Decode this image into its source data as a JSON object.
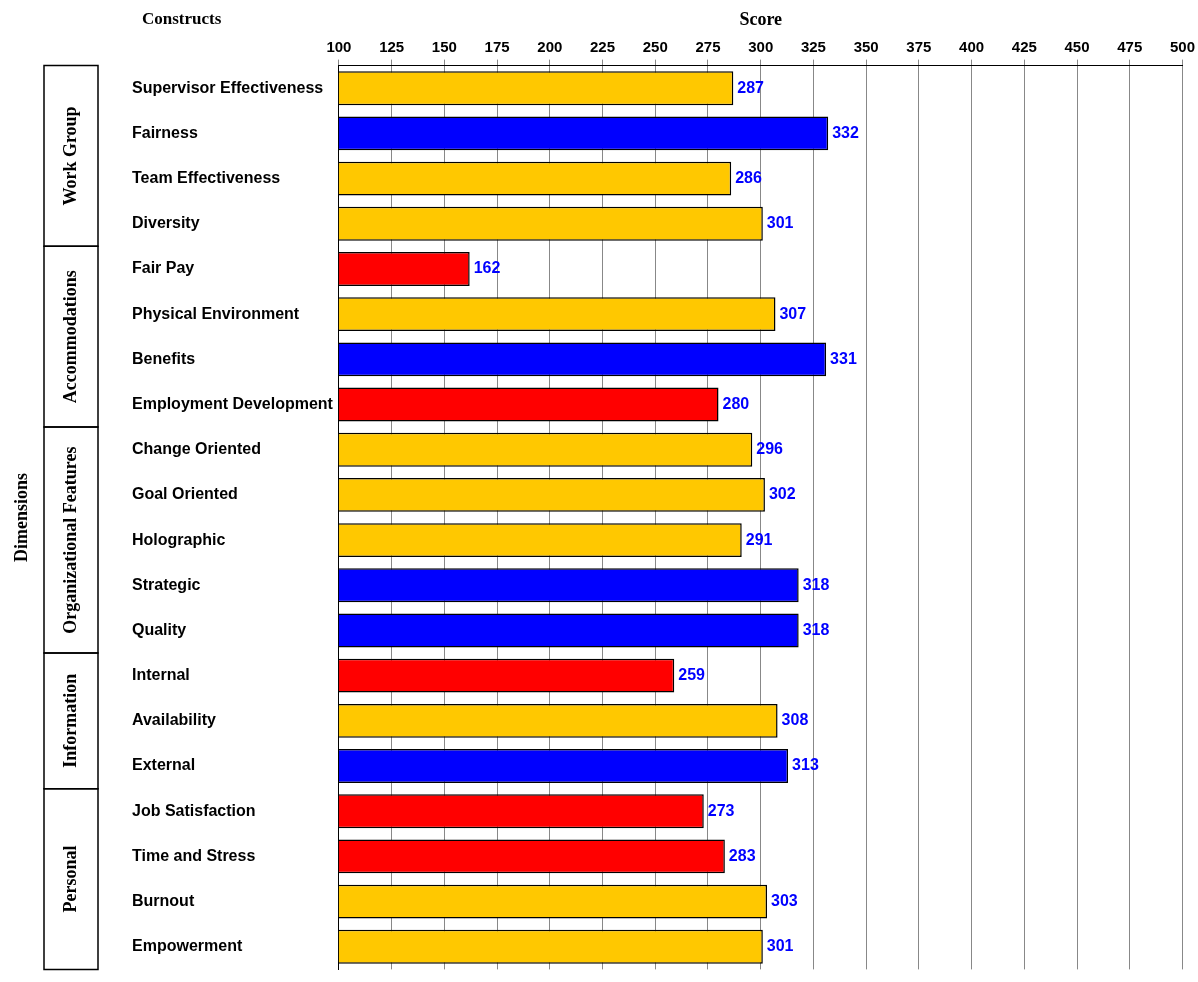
{
  "chart_data": {
    "type": "bar",
    "orientation": "horizontal",
    "xlabel": "Score",
    "ylabel": "Constructs",
    "categories": [
      "Supervisor Effectiveness",
      "Fairness",
      "Team Effectiveness",
      "Diversity",
      "Fair Pay",
      "Physical Environment",
      "Benefits",
      "Employment Development",
      "Change Oriented",
      "Goal Oriented",
      "Holographic",
      "Strategic",
      "Quality",
      "Internal",
      "Availability",
      "External",
      "Job Satisfaction",
      "Time and Stress",
      "Burnout",
      "Empowerment"
    ],
    "values": [
      287,
      332,
      286,
      301,
      162,
      307,
      331,
      280,
      296,
      302,
      291,
      318,
      318,
      259,
      308,
      313,
      273,
      283,
      303,
      301
    ],
    "colors": [
      "#ffc800",
      "#0000ff",
      "#ffc800",
      "#ffc800",
      "#ff0000",
      "#ffc800",
      "#0000ff",
      "#ff0000",
      "#ffc800",
      "#ffc800",
      "#ffc800",
      "#0000ff",
      "#0000ff",
      "#ff0000",
      "#ffc800",
      "#0000ff",
      "#ff0000",
      "#ff0000",
      "#ffc800",
      "#ffc800"
    ],
    "xlim": [
      100,
      500
    ],
    "xticks": [
      100,
      125,
      150,
      175,
      200,
      225,
      250,
      275,
      300,
      325,
      350,
      375,
      400,
      425,
      450,
      475,
      500
    ],
    "grid": "x",
    "legend": false,
    "data_labels": true,
    "annotations": [
      "Dimensions",
      "Work Group",
      "Accommodations",
      "Organizational Features",
      "Information",
      "Personal"
    ]
  }
}
